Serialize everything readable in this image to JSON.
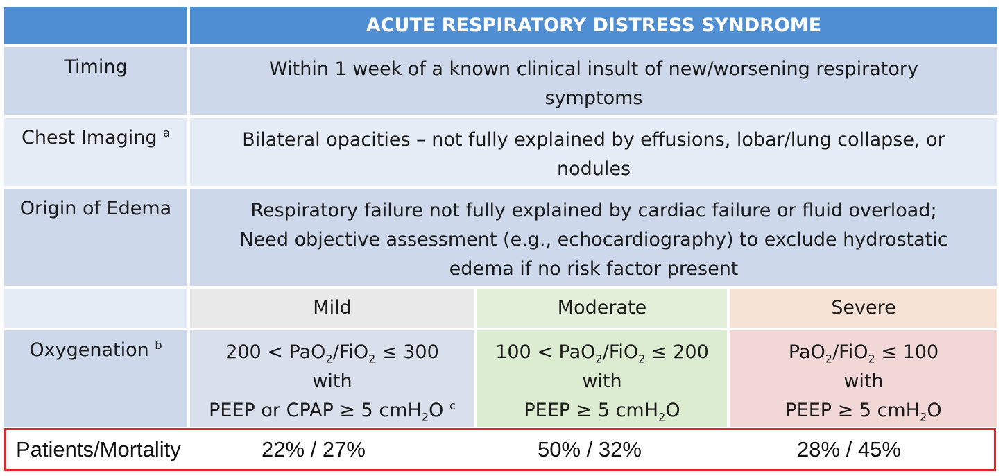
{
  "title": "ACUTE RESPIRATORY DISTRESS SYNDROME",
  "rows": {
    "timing": {
      "label": "Timing",
      "text_line1": "Within 1 week of a known clinical insult of new/worsening respiratory",
      "text_line2": "symptoms"
    },
    "imaging": {
      "label": "Chest Imaging",
      "label_sup": "a",
      "text_line1": "Bilateral opacities – not fully explained by effusions, lobar/lung collapse, or",
      "text_line2": "nodules"
    },
    "edema": {
      "label": "Origin of Edema",
      "text_line1": "Respiratory failure not fully explained by cardiac failure or fluid overload;",
      "text_line2": "Need objective assessment (e.g., echocardiography) to exclude hydrostatic",
      "text_line3": "edema if no risk factor present"
    }
  },
  "severity": {
    "mild": "Mild",
    "moderate": "Moderate",
    "severe": "Severe"
  },
  "oxygenation": {
    "label": "Oxygenation",
    "label_sup": "b",
    "with": "with",
    "mild": {
      "prefix": "200 < PaO",
      "mid": "/FiO",
      "suffix": " ≤ 300",
      "peep": "PEEP or CPAP ≥ 5 cmH",
      "peep_tail": "O",
      "peep_sup": "c"
    },
    "moderate": {
      "prefix": "100 < PaO",
      "mid": "/FiO",
      "suffix": " ≤ 200",
      "peep": "PEEP ≥ 5 cmH",
      "peep_tail": "O"
    },
    "severe": {
      "prefix": "PaO",
      "mid": "/FiO",
      "suffix": " ≤ 100",
      "peep": "PEEP ≥ 5 cmH",
      "peep_tail": "O"
    },
    "subscript": "2"
  },
  "mortality": {
    "label": "Patients/Mortality",
    "mild": "22% / 27%",
    "moderate": "50% / 32%",
    "severe": "28% / 45%"
  },
  "colors": {
    "header": "#4f8ed3",
    "highlight_border": "#e0262a"
  }
}
